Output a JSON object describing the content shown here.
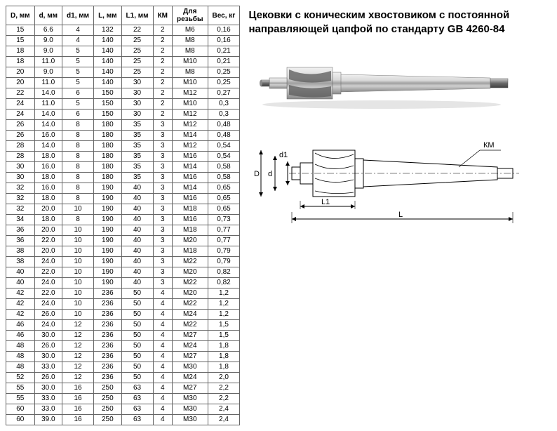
{
  "title": "Цековки с коническим хвостовиком с постоянной направляющей цапфой по стандарту GB 4260-84",
  "columns": [
    "D, мм",
    "d, мм",
    "d1, мм",
    "L, мм",
    "L1, мм",
    "КМ",
    "Для\nрезьбы",
    "Вес, кг"
  ],
  "rows": [
    [
      "15",
      "6.6",
      "4",
      "132",
      "22",
      "2",
      "М6",
      "0,16"
    ],
    [
      "15",
      "9.0",
      "4",
      "140",
      "25",
      "2",
      "М8",
      "0,16"
    ],
    [
      "18",
      "9.0",
      "5",
      "140",
      "25",
      "2",
      "М8",
      "0,21"
    ],
    [
      "18",
      "11.0",
      "5",
      "140",
      "25",
      "2",
      "М10",
      "0,21"
    ],
    [
      "20",
      "9.0",
      "5",
      "140",
      "25",
      "2",
      "М8",
      "0,25"
    ],
    [
      "20",
      "11.0",
      "5",
      "140",
      "30",
      "2",
      "М10",
      "0,25"
    ],
    [
      "22",
      "14.0",
      "6",
      "150",
      "30",
      "2",
      "М12",
      "0,27"
    ],
    [
      "24",
      "11.0",
      "5",
      "150",
      "30",
      "2",
      "М10",
      "0,3"
    ],
    [
      "24",
      "14.0",
      "6",
      "150",
      "30",
      "2",
      "М12",
      "0,3"
    ],
    [
      "26",
      "14.0",
      "8",
      "180",
      "35",
      "3",
      "М12",
      "0,48"
    ],
    [
      "26",
      "16.0",
      "8",
      "180",
      "35",
      "3",
      "М14",
      "0,48"
    ],
    [
      "28",
      "14.0",
      "8",
      "180",
      "35",
      "3",
      "М12",
      "0,54"
    ],
    [
      "28",
      "18.0",
      "8",
      "180",
      "35",
      "3",
      "М16",
      "0,54"
    ],
    [
      "30",
      "16.0",
      "8",
      "180",
      "35",
      "3",
      "М14",
      "0,58"
    ],
    [
      "30",
      "18.0",
      "8",
      "180",
      "35",
      "3",
      "М16",
      "0,58"
    ],
    [
      "32",
      "16.0",
      "8",
      "190",
      "40",
      "3",
      "М14",
      "0,65"
    ],
    [
      "32",
      "18.0",
      "8",
      "190",
      "40",
      "3",
      "М16",
      "0,65"
    ],
    [
      "32",
      "20.0",
      "10",
      "190",
      "40",
      "3",
      "М18",
      "0,65"
    ],
    [
      "34",
      "18.0",
      "8",
      "190",
      "40",
      "3",
      "М16",
      "0,73"
    ],
    [
      "36",
      "20.0",
      "10",
      "190",
      "40",
      "3",
      "М18",
      "0,77"
    ],
    [
      "36",
      "22.0",
      "10",
      "190",
      "40",
      "3",
      "М20",
      "0,77"
    ],
    [
      "38",
      "20.0",
      "10",
      "190",
      "40",
      "3",
      "М18",
      "0,79"
    ],
    [
      "38",
      "24.0",
      "10",
      "190",
      "40",
      "3",
      "М22",
      "0,79"
    ],
    [
      "40",
      "22.0",
      "10",
      "190",
      "40",
      "3",
      "М20",
      "0,82"
    ],
    [
      "40",
      "24.0",
      "10",
      "190",
      "40",
      "3",
      "М22",
      "0,82"
    ],
    [
      "42",
      "22.0",
      "10",
      "236",
      "50",
      "4",
      "М20",
      "1,2"
    ],
    [
      "42",
      "24.0",
      "10",
      "236",
      "50",
      "4",
      "М22",
      "1,2"
    ],
    [
      "42",
      "26.0",
      "10",
      "236",
      "50",
      "4",
      "М24",
      "1,2"
    ],
    [
      "46",
      "24.0",
      "12",
      "236",
      "50",
      "4",
      "М22",
      "1,5"
    ],
    [
      "46",
      "30.0",
      "12",
      "236",
      "50",
      "4",
      "М27",
      "1,5"
    ],
    [
      "48",
      "26.0",
      "12",
      "236",
      "50",
      "4",
      "М24",
      "1,8"
    ],
    [
      "48",
      "30.0",
      "12",
      "236",
      "50",
      "4",
      "М27",
      "1,8"
    ],
    [
      "48",
      "33.0",
      "12",
      "236",
      "50",
      "4",
      "М30",
      "1,8"
    ],
    [
      "52",
      "26.0",
      "12",
      "236",
      "50",
      "4",
      "М24",
      "2,0"
    ],
    [
      "55",
      "30.0",
      "16",
      "250",
      "63",
      "4",
      "М27",
      "2,2"
    ],
    [
      "55",
      "33.0",
      "16",
      "250",
      "63",
      "4",
      "М30",
      "2,2"
    ],
    [
      "60",
      "33.0",
      "16",
      "250",
      "63",
      "4",
      "М30",
      "2,4"
    ],
    [
      "60",
      "39.0",
      "16",
      "250",
      "63",
      "4",
      "М30",
      "2,4"
    ]
  ],
  "dim_labels": {
    "D": "D",
    "d": "d",
    "d1": "d1",
    "L": "L",
    "L1": "L1",
    "KM": "КМ"
  },
  "colors": {
    "metal_light": "#cfcfcf",
    "metal_mid": "#a8a8a8",
    "metal_dark": "#707070",
    "border": "#666",
    "shadow": "#888"
  }
}
